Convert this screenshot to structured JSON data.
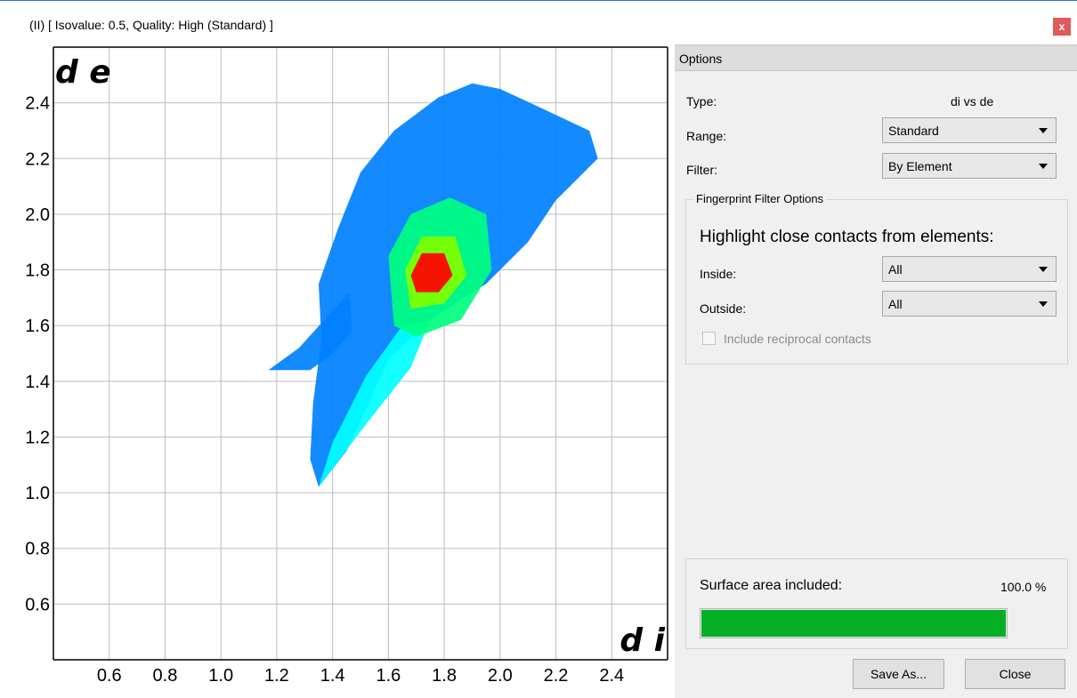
{
  "window": {
    "title": "(II) [ Isovalue: 0.5, Quality: High (Standard) ]",
    "close_label": "x"
  },
  "options": {
    "header": "Options",
    "type_label": "Type:",
    "type_value": "di vs de",
    "range_label": "Range:",
    "range_value": "Standard",
    "filter_label": "Filter:",
    "filter_value": "By Element",
    "group_title": "Fingerprint Filter Options",
    "highlight_text": "Highlight close contacts from elements:",
    "inside_label": "Inside:",
    "inside_value": "All",
    "outside_label": "Outside:",
    "outside_value": "All",
    "reciprocal_label": "Include reciprocal contacts",
    "reciprocal_checked": false,
    "reciprocal_enabled": false
  },
  "surface": {
    "label": "Surface area included:",
    "value_text": "100.0 %",
    "fraction": 1.0
  },
  "buttons": {
    "save_as": "Save As...",
    "close": "Close"
  },
  "colors": {
    "accent": "#1e7ad2",
    "progress_fill": "#06b025",
    "close_button": "#e05a5a"
  },
  "chart_data": {
    "type": "heatmap",
    "xlabel": "d i",
    "ylabel": "d e",
    "xlim": [
      0.4,
      2.6
    ],
    "ylim": [
      0.4,
      2.6
    ],
    "x_ticks": [
      "0.6",
      "0.8",
      "1.0",
      "1.2",
      "1.4",
      "1.6",
      "1.8",
      "2.0",
      "2.2",
      "2.4"
    ],
    "y_ticks": [
      "0.6",
      "0.8",
      "1.0",
      "1.2",
      "1.4",
      "1.6",
      "1.8",
      "2.0",
      "2.2",
      "2.4"
    ],
    "grid": true,
    "colormap": [
      "#0000ff",
      "#0080ff",
      "#00ffff",
      "#00ff80",
      "#80ff00",
      "#ffff00",
      "#ff8000",
      "#ff0000"
    ],
    "regions": [
      {
        "name": "main",
        "polygon": [
          [
            1.35,
            1.02
          ],
          [
            1.45,
            1.15
          ],
          [
            1.52,
            1.3
          ],
          [
            1.6,
            1.48
          ],
          [
            1.75,
            1.62
          ],
          [
            1.95,
            1.75
          ],
          [
            2.1,
            1.9
          ],
          [
            2.2,
            2.05
          ],
          [
            2.35,
            2.2
          ],
          [
            2.32,
            2.3
          ],
          [
            2.15,
            2.38
          ],
          [
            2.0,
            2.45
          ],
          [
            1.9,
            2.47
          ],
          [
            1.78,
            2.42
          ],
          [
            1.62,
            2.3
          ],
          [
            1.5,
            2.15
          ],
          [
            1.42,
            1.95
          ],
          [
            1.35,
            1.75
          ],
          [
            1.36,
            1.55
          ],
          [
            1.33,
            1.32
          ],
          [
            1.32,
            1.12
          ]
        ],
        "intensity": 0.12
      },
      {
        "name": "left-spike",
        "polygon": [
          [
            1.17,
            1.44
          ],
          [
            1.28,
            1.52
          ],
          [
            1.37,
            1.62
          ],
          [
            1.46,
            1.72
          ],
          [
            1.47,
            1.58
          ],
          [
            1.4,
            1.5
          ],
          [
            1.32,
            1.44
          ]
        ],
        "intensity": 0.1
      },
      {
        "name": "diagonal-streak",
        "polygon": [
          [
            1.35,
            1.02
          ],
          [
            1.5,
            1.22
          ],
          [
            1.68,
            1.45
          ],
          [
            1.75,
            1.62
          ],
          [
            1.65,
            1.6
          ],
          [
            1.52,
            1.42
          ],
          [
            1.4,
            1.18
          ]
        ],
        "intensity": 0.35
      },
      {
        "name": "mid-cloud",
        "polygon": [
          [
            1.62,
            1.6
          ],
          [
            1.7,
            1.56
          ],
          [
            1.86,
            1.62
          ],
          [
            1.97,
            1.8
          ],
          [
            1.95,
            2.0
          ],
          [
            1.82,
            2.06
          ],
          [
            1.68,
            2.0
          ],
          [
            1.6,
            1.85
          ]
        ],
        "intensity": 0.38
      },
      {
        "name": "inner-cloud",
        "polygon": [
          [
            1.68,
            1.66
          ],
          [
            1.8,
            1.68
          ],
          [
            1.88,
            1.78
          ],
          [
            1.84,
            1.92
          ],
          [
            1.72,
            1.92
          ],
          [
            1.66,
            1.8
          ]
        ],
        "intensity": 0.62
      },
      {
        "name": "hot-core",
        "polygon": [
          [
            1.7,
            1.72
          ],
          [
            1.78,
            1.72
          ],
          [
            1.83,
            1.78
          ],
          [
            1.8,
            1.86
          ],
          [
            1.72,
            1.86
          ],
          [
            1.68,
            1.78
          ]
        ],
        "intensity": 0.95
      }
    ]
  }
}
